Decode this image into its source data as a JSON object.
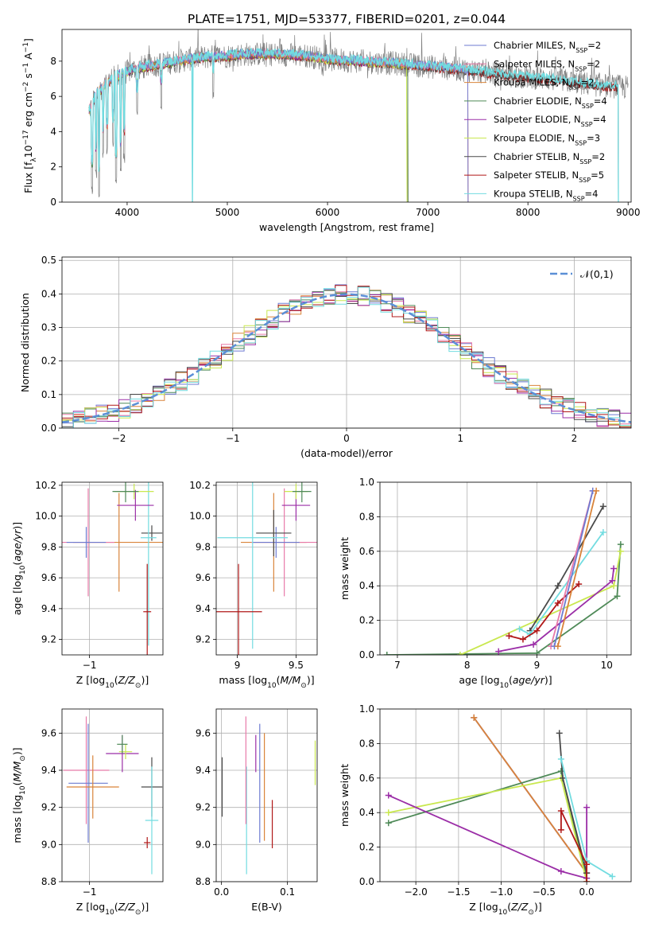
{
  "figure_title": "PLATE=1751, MJD=53377, FIBERID=0201, z=0.044",
  "colors": {
    "Chabrier MILES": "#6d7bd1",
    "Salpeter MILES": "#e87aa9",
    "Kroupa MILES": "#d9843a",
    "Chabrier ELODIE": "#4f8a58",
    "Salpeter ELODIE": "#9b2ea7",
    "Kroupa ELODIE": "#c9e84f",
    "Chabrier STELIB": "#4a4a4a",
    "Salpeter STELIB": "#b01818",
    "Kroupa STELIB": "#72dce0",
    "normal_curve": "#5b8fd6"
  },
  "chart_data": [
    {
      "id": "spectrum",
      "type": "line",
      "title": "PLATE=1751, MJD=53377, FIBERID=0201, z=0.044",
      "xlabel": "wavelength [Angstrom, rest frame]",
      "ylabel": "Flux [f_λ 10^-17 erg cm^-2 s^-1 A^-1]",
      "xlim": [
        3350,
        9030
      ],
      "ylim": [
        0,
        9.8
      ],
      "xticks": [
        4000,
        5000,
        6000,
        7000,
        8000,
        9000
      ],
      "yticks": [
        0,
        2,
        4,
        6,
        8
      ],
      "legend_position": "right",
      "legend": [
        {
          "name": "Chabrier MILES, N_SSP=2",
          "base": "Chabrier MILES, N",
          "sub": "SSP",
          "tail": "=2"
        },
        {
          "name": "Salpeter MILES, N_SSP=2",
          "base": "Salpeter MILES, N",
          "sub": "SSP",
          "tail": "=2"
        },
        {
          "name": "Kroupa MILES, N_SSP=2",
          "base": "Kroupa MILES, N",
          "sub": "SSP",
          "tail": "=2"
        },
        {
          "name": "Chabrier ELODIE, N_SSP=4",
          "base": "Chabrier ELODIE, N",
          "sub": "SSP",
          "tail": "=4"
        },
        {
          "name": "Salpeter ELODIE, N_SSP=4",
          "base": "Salpeter ELODIE, N",
          "sub": "SSP",
          "tail": "=4"
        },
        {
          "name": "Kroupa ELODIE, N_SSP=3",
          "base": "Kroupa ELODIE, N",
          "sub": "SSP",
          "tail": "=3"
        },
        {
          "name": "Chabrier STELIB, N_SSP=2",
          "base": "Chabrier STELIB, N",
          "sub": "SSP",
          "tail": "=2"
        },
        {
          "name": "Salpeter STELIB, N_SSP=5",
          "base": "Salpeter STELIB, N",
          "sub": "SSP",
          "tail": "=5"
        },
        {
          "name": "Kroupa STELIB, N_SSP=4",
          "base": "Kroupa STELIB, N",
          "sub": "SSP",
          "tail": "=4"
        }
      ],
      "observed": {
        "color": "#808080",
        "start": 3620,
        "end": 9000,
        "knots": [
          [
            3620,
            5.2
          ],
          [
            3700,
            6.2
          ],
          [
            3800,
            6.8
          ],
          [
            3900,
            7.2
          ],
          [
            4000,
            7.4
          ],
          [
            4100,
            7.6
          ],
          [
            4300,
            7.8
          ],
          [
            4500,
            8.0
          ],
          [
            4700,
            8.2
          ],
          [
            5000,
            8.3
          ],
          [
            5200,
            8.4
          ],
          [
            5500,
            8.4
          ],
          [
            5800,
            8.3
          ],
          [
            6000,
            8.1
          ],
          [
            6300,
            8.0
          ],
          [
            6600,
            7.9
          ],
          [
            7000,
            7.7
          ],
          [
            7400,
            7.5
          ],
          [
            7800,
            7.2
          ],
          [
            8200,
            7.0
          ],
          [
            8600,
            6.7
          ],
          [
            9000,
            6.5
          ]
        ],
        "notches": [
          [
            3650,
            0.4
          ],
          [
            3690,
            1.3
          ],
          [
            3720,
            0.2
          ],
          [
            3760,
            2.4
          ],
          [
            3800,
            2.6
          ],
          [
            3860,
            3.0
          ],
          [
            3890,
            1.0
          ],
          [
            3935,
            1.6
          ],
          [
            3970,
            2.2
          ],
          [
            4100,
            4.7
          ],
          [
            4340,
            5.2
          ],
          [
            4860,
            5.8
          ]
        ]
      },
      "dips": [
        {
          "series": "Kroupa STELIB",
          "x": 4650
        },
        {
          "series": "Kroupa ELODIE",
          "x": 6795
        },
        {
          "series": "Kroupa MILES",
          "x": 7410
        }
      ],
      "model_ends": {
        "Chabrier MILES": 7400,
        "Salpeter MILES": 7400,
        "Kroupa MILES": 7400,
        "Chabrier ELODIE": 6800,
        "Salpeter ELODIE": 6800,
        "Kroupa ELODIE": 6800,
        "Chabrier STELIB": 8900,
        "Salpeter STELIB": 8900,
        "Kroupa STELIB": 8900
      }
    },
    {
      "id": "residual_hist",
      "type": "line",
      "xlabel": "(data-model)/error",
      "ylabel": "Normed distribution",
      "xlim": [
        -2.5,
        2.5
      ],
      "ylim": [
        0,
        0.51
      ],
      "xticks": [
        -2,
        -1,
        0,
        1,
        2
      ],
      "yticks": [
        0.0,
        0.1,
        0.2,
        0.3,
        0.4,
        0.5
      ],
      "grid": true,
      "bin_width": 0.1,
      "legend_position": "top-right",
      "legend": [
        "𝒩(0,1)"
      ],
      "curve": {
        "series": "normal_curve",
        "name": "𝒩(0,1)",
        "mean": 0,
        "sigma": 1
      }
    },
    {
      "id": "age_vs_Z",
      "type": "scatter",
      "xlabel": "Z [log10(Z/Z⊙)]",
      "ylabel": "age [log10(age/yr)]",
      "xlim": [
        -1.42,
        0.12
      ],
      "ylim": [
        9.1,
        10.22
      ],
      "xticks": [
        -1
      ],
      "yticks": [
        9.2,
        9.4,
        9.6,
        9.8,
        10.0,
        10.2
      ],
      "grid": true,
      "points": [
        {
          "series": "Kroupa MILES",
          "x": -0.55,
          "y": 9.83,
          "xerr": 0.7,
          "yerr": 0.32
        },
        {
          "series": "Salpeter MILES",
          "x": -1.02,
          "y": 9.83,
          "xerr": 0.4,
          "yerr": 0.35
        },
        {
          "series": "Chabrier MILES",
          "x": -1.05,
          "y": 9.83,
          "xerr": 0.3,
          "yerr": 0.1
        },
        {
          "series": "Chabrier STELIB",
          "x": -0.05,
          "y": 9.89,
          "xerr": 0.16,
          "yerr": 0.05
        },
        {
          "series": "Kroupa STELIB",
          "x": -0.1,
          "y": 9.86,
          "xerr": 0.12,
          "yerr": 0.7
        },
        {
          "series": "Salpeter STELIB",
          "x": -0.12,
          "y": 9.38,
          "xerr": 0.06,
          "yerr": 0.31
        },
        {
          "series": "Salpeter ELODIE",
          "x": -0.3,
          "y": 10.07,
          "xerr": 0.28,
          "yerr": 0.1
        },
        {
          "series": "Kroupa ELODIE",
          "x": -0.32,
          "y": 10.16,
          "xerr": 0.3,
          "yerr": 0.05
        },
        {
          "series": "Chabrier ELODIE",
          "x": -0.45,
          "y": 10.16,
          "xerr": 0.2,
          "yerr": 0.07
        }
      ]
    },
    {
      "id": "age_vs_mass",
      "type": "scatter",
      "xlabel": "mass [log10(M/M⊙)]",
      "ylabel": "",
      "xlim": [
        8.82,
        9.68
      ],
      "ylim": [
        9.1,
        10.22
      ],
      "xticks": [
        9.0,
        9.5
      ],
      "yticks": [
        9.2,
        9.4,
        9.6,
        9.8,
        10.0,
        10.2
      ],
      "grid": true,
      "points": [
        {
          "series": "Kroupa MILES",
          "x": 9.31,
          "y": 9.83,
          "xerr": 0.28,
          "yerr": 0.32
        },
        {
          "series": "Salpeter MILES",
          "x": 9.4,
          "y": 9.83,
          "xerr": 0.28,
          "yerr": 0.35
        },
        {
          "series": "Chabrier MILES",
          "x": 9.33,
          "y": 9.83,
          "xerr": 0.2,
          "yerr": 0.1
        },
        {
          "series": "Chabrier STELIB",
          "x": 9.31,
          "y": 9.89,
          "xerr": 0.15,
          "yerr": 0.15
        },
        {
          "series": "Kroupa STELIB",
          "x": 9.13,
          "y": 9.86,
          "xerr": 0.3,
          "yerr": 0.72
        },
        {
          "series": "Salpeter STELIB",
          "x": 9.01,
          "y": 9.38,
          "xerr": 0.2,
          "yerr": 0.31
        },
        {
          "series": "Salpeter ELODIE",
          "x": 9.5,
          "y": 10.07,
          "xerr": 0.12,
          "yerr": 0.1
        },
        {
          "series": "Kroupa ELODIE",
          "x": 9.5,
          "y": 10.16,
          "xerr": 0.1,
          "yerr": 0.05
        },
        {
          "series": "Chabrier ELODIE",
          "x": 9.55,
          "y": 10.16,
          "xerr": 0.08,
          "yerr": 0.07
        }
      ]
    },
    {
      "id": "mass_weight_vs_age",
      "type": "line",
      "xlabel": "age [log10(age/yr)]",
      "ylabel": "mass weight",
      "xlim": [
        6.75,
        10.35
      ],
      "ylim": [
        0,
        1.0
      ],
      "xticks": [
        7,
        8,
        9,
        10
      ],
      "yticks": [
        0.0,
        0.2,
        0.4,
        0.6,
        0.8,
        1.0
      ],
      "grid": true,
      "series": [
        {
          "name": "Chabrier ELODIE",
          "x": [
            6.85,
            9.0,
            10.15,
            10.2
          ],
          "y": [
            0.0,
            0.01,
            0.34,
            0.64
          ]
        },
        {
          "name": "Kroupa ELODIE",
          "x": [
            7.9,
            9.0,
            10.1,
            10.2
          ],
          "y": [
            0.0,
            0.2,
            0.4,
            0.6
          ]
        },
        {
          "name": "Salpeter ELODIE",
          "x": [
            8.45,
            8.95,
            10.08,
            10.1
          ],
          "y": [
            0.02,
            0.06,
            0.43,
            0.5
          ]
        },
        {
          "name": "Chabrier STELIB",
          "x": [
            8.9,
            9.3,
            9.95
          ],
          "y": [
            0.14,
            0.4,
            0.86
          ]
        },
        {
          "name": "Kroupa STELIB",
          "x": [
            8.75,
            8.9,
            9.95
          ],
          "y": [
            0.15,
            0.12,
            0.71
          ]
        },
        {
          "name": "Salpeter STELIB",
          "x": [
            8.6,
            8.8,
            9.0,
            9.3,
            9.6
          ],
          "y": [
            0.11,
            0.09,
            0.14,
            0.3,
            0.41
          ]
        },
        {
          "name": "Salpeter MILES",
          "x": [
            9.2,
            9.8
          ],
          "y": [
            0.05,
            0.95
          ]
        },
        {
          "name": "Chabrier MILES",
          "x": [
            9.25,
            9.8
          ],
          "y": [
            0.05,
            0.95
          ]
        },
        {
          "name": "Kroupa MILES",
          "x": [
            9.3,
            9.85
          ],
          "y": [
            0.05,
            0.95
          ]
        }
      ]
    },
    {
      "id": "mass_vs_Z",
      "type": "scatter",
      "xlabel": "Z [log10(Z/Z⊙)]",
      "ylabel": "mass [log10(M/M⊙)]",
      "xlim": [
        -1.42,
        0.12
      ],
      "ylim": [
        8.8,
        9.73
      ],
      "xticks": [
        -1
      ],
      "yticks": [
        8.8,
        9.0,
        9.2,
        9.4,
        9.6
      ],
      "grid": true,
      "points": [
        {
          "series": "Salpeter MILES",
          "x": -1.05,
          "y": 9.4,
          "xerr": 0.35,
          "yerr": 0.29
        },
        {
          "series": "Chabrier MILES",
          "x": -1.02,
          "y": 9.33,
          "xerr": 0.3,
          "yerr": 0.32
        },
        {
          "series": "Kroupa MILES",
          "x": -0.95,
          "y": 9.31,
          "xerr": 0.4,
          "yerr": 0.17
        },
        {
          "series": "Chabrier STELIB",
          "x": -0.05,
          "y": 9.31,
          "xerr": 0.16,
          "yerr": 0.16
        },
        {
          "series": "Kroupa STELIB",
          "x": -0.05,
          "y": 9.13,
          "xerr": 0.1,
          "yerr": 0.29
        },
        {
          "series": "Salpeter STELIB",
          "x": -0.12,
          "y": 9.01,
          "xerr": 0.05,
          "yerr": 0.03
        },
        {
          "series": "Salpeter ELODIE",
          "x": -0.5,
          "y": 9.49,
          "xerr": 0.25,
          "yerr": 0.1
        },
        {
          "series": "Kroupa ELODIE",
          "x": -0.45,
          "y": 9.5,
          "xerr": 0.1,
          "yerr": 0.04
        },
        {
          "series": "Chabrier ELODIE",
          "x": -0.5,
          "y": 9.54,
          "xerr": 0.08,
          "yerr": 0.05
        }
      ]
    },
    {
      "id": "mass_vs_ebv",
      "type": "scatter",
      "xlabel": "E(B-V)",
      "ylabel": "",
      "xlim": [
        -0.008,
        0.145
      ],
      "ylim": [
        8.8,
        9.73
      ],
      "xticks": [
        0.0,
        0.1
      ],
      "yticks": [
        8.8,
        9.0,
        9.2,
        9.4,
        9.6
      ],
      "grid": true,
      "points": [
        {
          "series": "Chabrier STELIB",
          "x": 0.001,
          "y": 9.31,
          "xerr": 0,
          "yerr": 0.16
        },
        {
          "series": "Kroupa STELIB",
          "x": 0.038,
          "y": 9.13,
          "xerr": 0,
          "yerr": 0.29
        },
        {
          "series": "Salpeter MILES",
          "x": 0.037,
          "y": 9.4,
          "xerr": 0,
          "yerr": 0.29
        },
        {
          "series": "Salpeter ELODIE",
          "x": 0.052,
          "y": 9.49,
          "xerr": 0,
          "yerr": 0.1
        },
        {
          "series": "Chabrier MILES",
          "x": 0.058,
          "y": 9.33,
          "xerr": 0,
          "yerr": 0.32
        },
        {
          "series": "Kroupa MILES",
          "x": 0.065,
          "y": 9.31,
          "xerr": 0,
          "yerr": 0.29
        },
        {
          "series": "Salpeter STELIB",
          "x": 0.077,
          "y": 9.11,
          "xerr": 0,
          "yerr": 0.13
        },
        {
          "series": "Kroupa ELODIE",
          "x": 0.142,
          "y": 9.44,
          "xerr": 0,
          "yerr": 0.12
        }
      ]
    },
    {
      "id": "mass_weight_vs_Z",
      "type": "line",
      "xlabel": "Z [log10(Z/Z⊙)]",
      "ylabel": "mass weight",
      "xlim": [
        -2.42,
        0.52
      ],
      "ylim": [
        0,
        1.0
      ],
      "xticks": [
        -2.0,
        -1.5,
        -1.0,
        -0.5,
        0.0
      ],
      "yticks": [
        0.0,
        0.2,
        0.4,
        0.6,
        0.8,
        1.0
      ],
      "grid": true,
      "series": [
        {
          "name": "Salpeter MILES",
          "x": [
            -1.32,
            0.0
          ],
          "y": [
            0.95,
            0.05
          ]
        },
        {
          "name": "Chabrier MILES",
          "x": [
            -1.32,
            0.0
          ],
          "y": [
            0.95,
            0.05
          ]
        },
        {
          "name": "Kroupa MILES",
          "x": [
            -1.32,
            0.0
          ],
          "y": [
            0.95,
            0.05
          ]
        },
        {
          "name": "Chabrier ELODIE",
          "x": [
            -2.32,
            -0.3,
            0.0
          ],
          "y": [
            0.34,
            0.64,
            0.02
          ]
        },
        {
          "name": "Kroupa ELODIE",
          "x": [
            -2.32,
            -0.3,
            0.0
          ],
          "y": [
            0.4,
            0.6,
            0.0
          ]
        },
        {
          "name": "Salpeter ELODIE",
          "x": [
            -2.32,
            -0.3,
            0.0,
            0.0
          ],
          "y": [
            0.5,
            0.06,
            0.02,
            0.43
          ]
        },
        {
          "name": "Chabrier STELIB",
          "x": [
            -0.32,
            -0.28,
            0.0
          ],
          "y": [
            0.86,
            0.6,
            0.05
          ]
        },
        {
          "name": "Kroupa STELIB",
          "x": [
            -0.3,
            0.0,
            0.3
          ],
          "y": [
            0.71,
            0.12,
            0.03
          ]
        },
        {
          "name": "Salpeter STELIB",
          "x": [
            -0.3,
            -0.3,
            0.0,
            0.0
          ],
          "y": [
            0.3,
            0.41,
            0.1,
            0.0
          ]
        }
      ]
    }
  ]
}
